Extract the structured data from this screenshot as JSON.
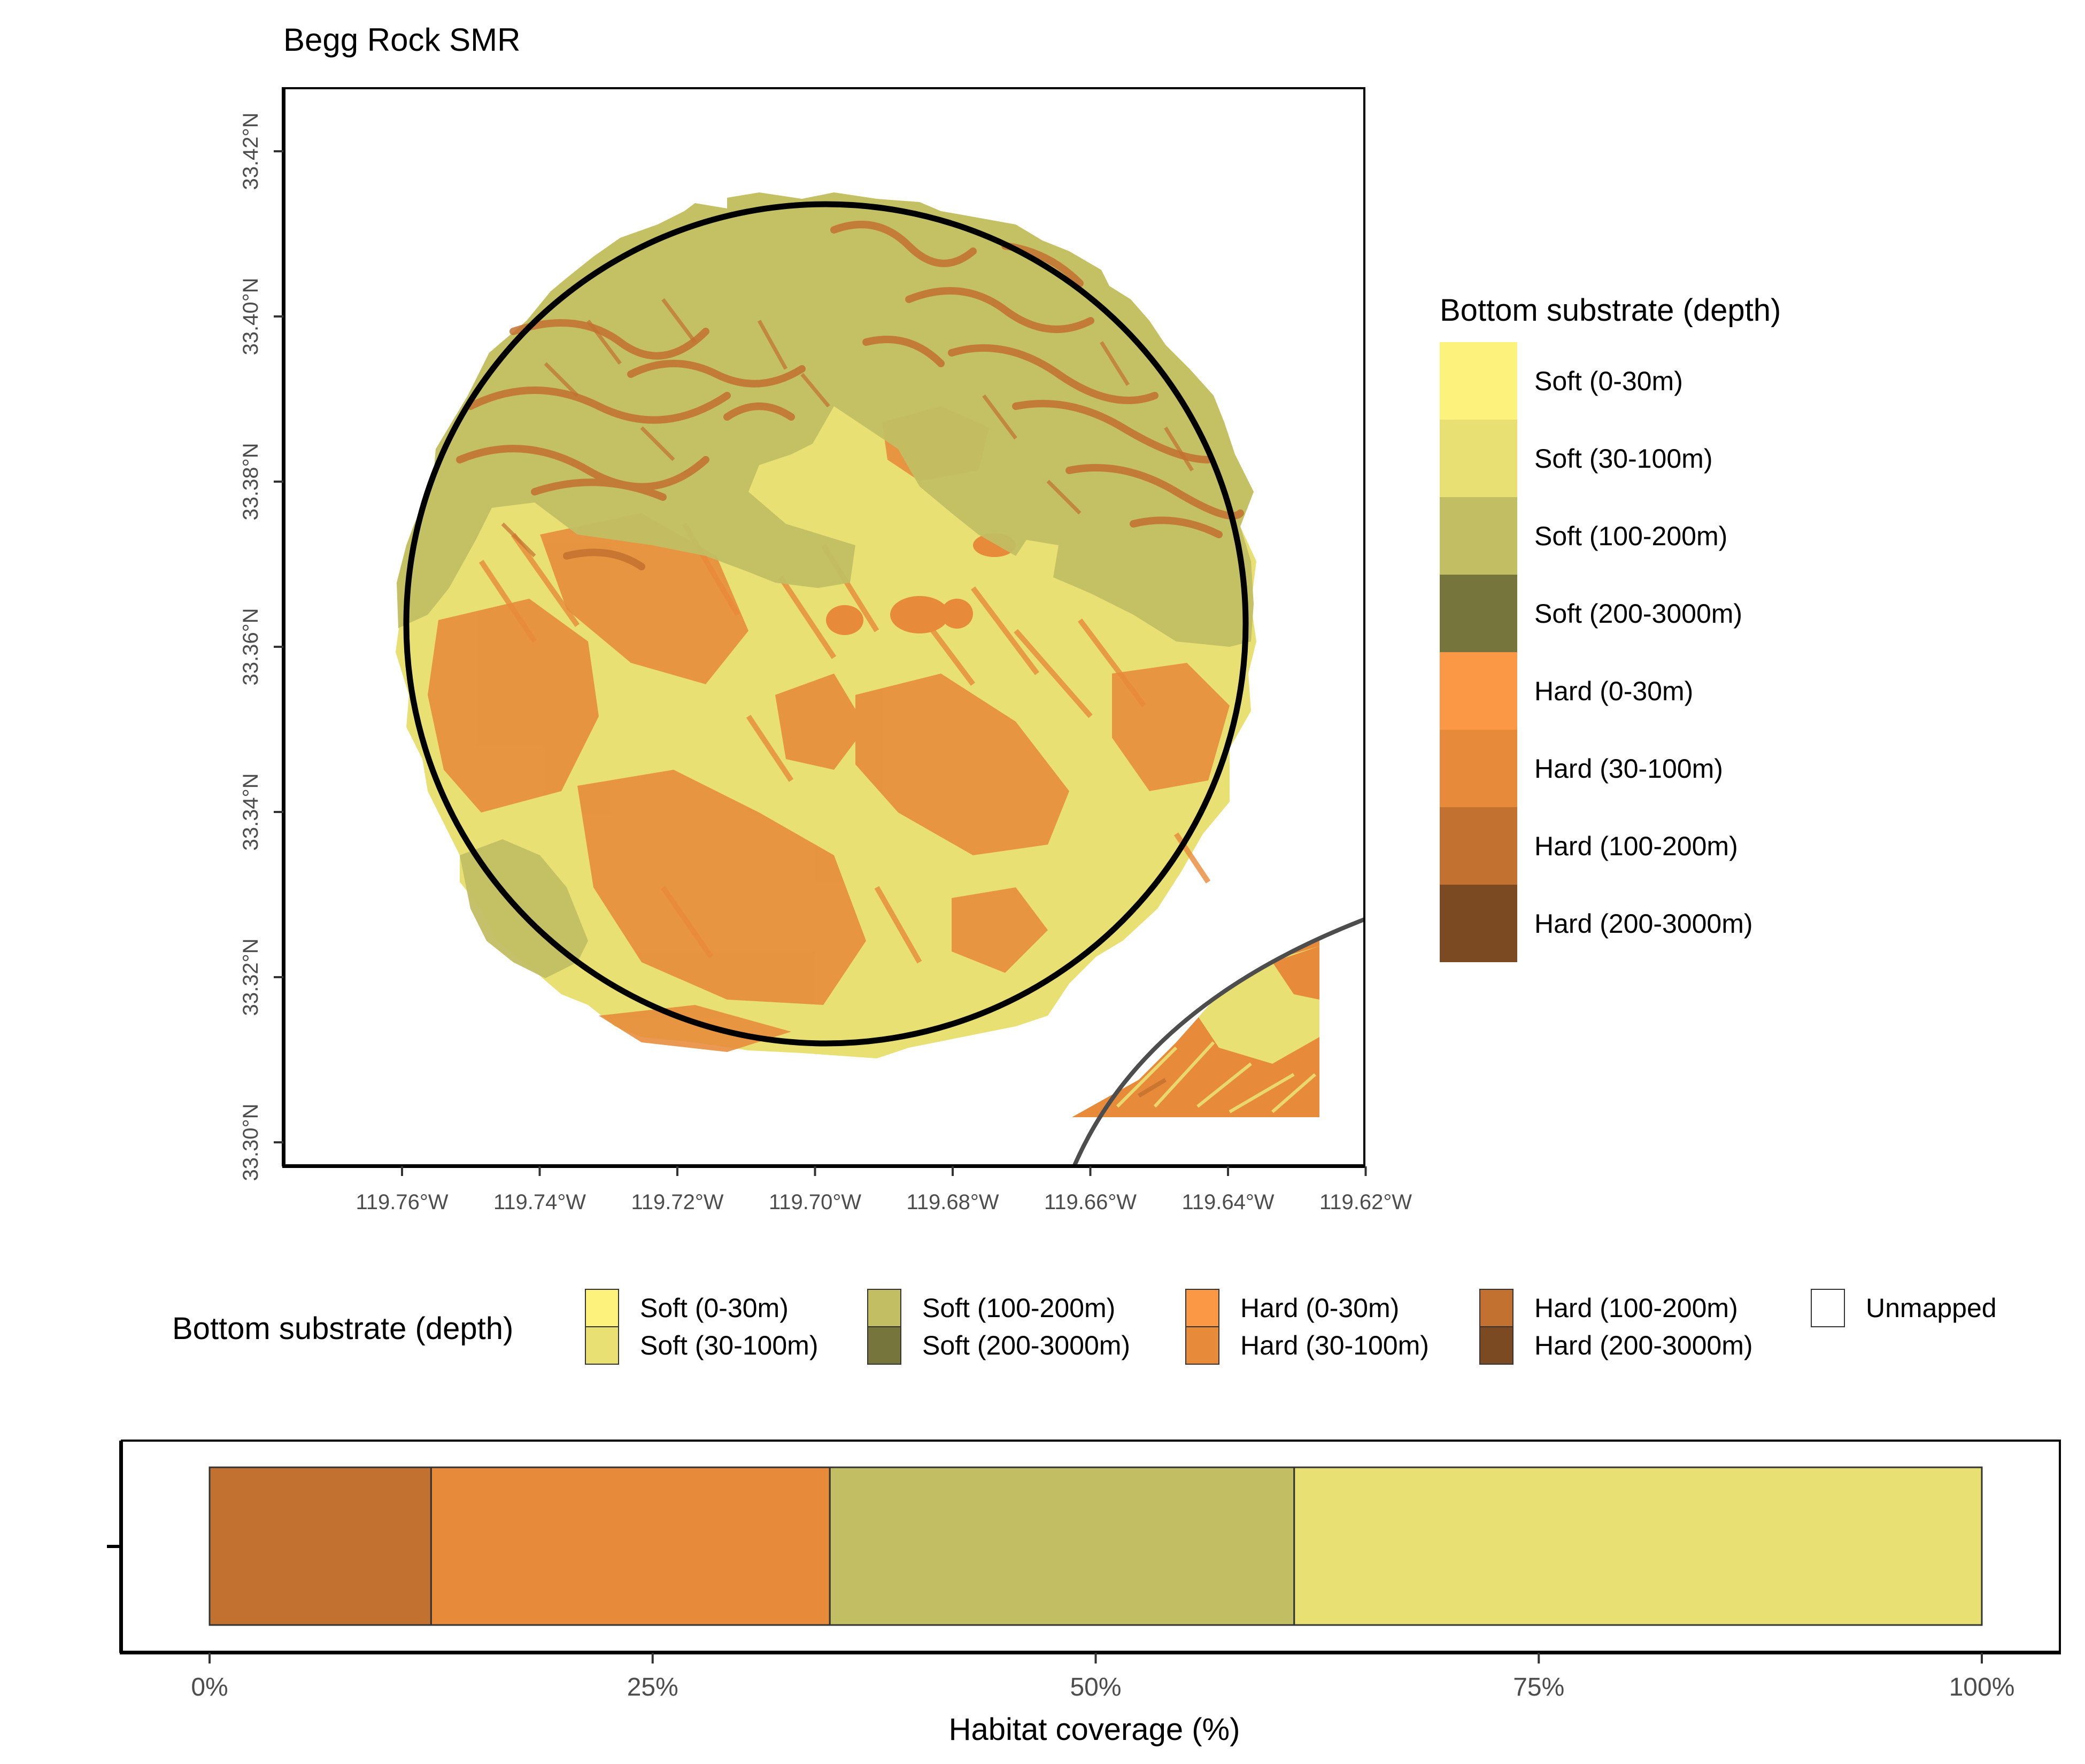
{
  "map": {
    "title": "Begg Rock SMR",
    "lon_ticks": [
      "119.76°W",
      "119.74°W",
      "119.72°W",
      "119.70°W",
      "119.68°W",
      "119.66°W",
      "119.64°W",
      "119.62°W"
    ],
    "lat_ticks": [
      "33.30°N",
      "33.32°N",
      "33.34°N",
      "33.36°N",
      "33.38°N",
      "33.40°N",
      "33.42°N"
    ],
    "boundary_color": "#000000",
    "neighbor_boundary_color": "#4d4d4d"
  },
  "legend_map": {
    "title": "Bottom substrate (depth)",
    "items": [
      {
        "label": "Soft (0-30m)",
        "color": "#FDF27B"
      },
      {
        "label": "Soft (30-100m)",
        "color": "#E9E073"
      },
      {
        "label": "Soft (100-200m)",
        "color": "#C2BE63"
      },
      {
        "label": "Soft (200-3000m)",
        "color": "#76763C"
      },
      {
        "label": "Hard (0-30m)",
        "color": "#FB9845"
      },
      {
        "label": "Hard (30-100m)",
        "color": "#E78A3A"
      },
      {
        "label": "Hard (100-200m)",
        "color": "#C37130"
      },
      {
        "label": "Hard (200-3000m)",
        "color": "#7B4A22"
      }
    ]
  },
  "legend_bar": {
    "title": "Bottom substrate (depth)",
    "items": [
      {
        "label": "Soft (0-30m)",
        "color": "#FDF27B"
      },
      {
        "label": "Soft (30-100m)",
        "color": "#E9E073"
      },
      {
        "label": "Soft (100-200m)",
        "color": "#C2BE63"
      },
      {
        "label": "Soft (200-3000m)",
        "color": "#76763C"
      },
      {
        "label": "Hard (0-30m)",
        "color": "#FB9845"
      },
      {
        "label": "Hard (30-100m)",
        "color": "#E78A3A"
      },
      {
        "label": "Hard (100-200m)",
        "color": "#C37130"
      },
      {
        "label": "Hard (200-3000m)",
        "color": "#7B4A22"
      },
      {
        "label": "Unmapped",
        "color": "#FFFFFF"
      }
    ]
  },
  "chart_data": {
    "type": "bar",
    "orientation": "horizontal",
    "stacked": true,
    "xlabel": "Habitat coverage (%)",
    "xlim": [
      0,
      100
    ],
    "x_ticks": [
      "0%",
      "25%",
      "50%",
      "75%",
      "100%"
    ],
    "segments": [
      {
        "name": "Hard (100-200m)",
        "value": 12.5,
        "color": "#C37130"
      },
      {
        "name": "Hard (30-100m)",
        "value": 22.5,
        "color": "#E78A3A"
      },
      {
        "name": "Soft (100-200m)",
        "value": 26.2,
        "color": "#C2BE63"
      },
      {
        "name": "Soft (30-100m)",
        "value": 38.8,
        "color": "#E9E073"
      }
    ]
  }
}
